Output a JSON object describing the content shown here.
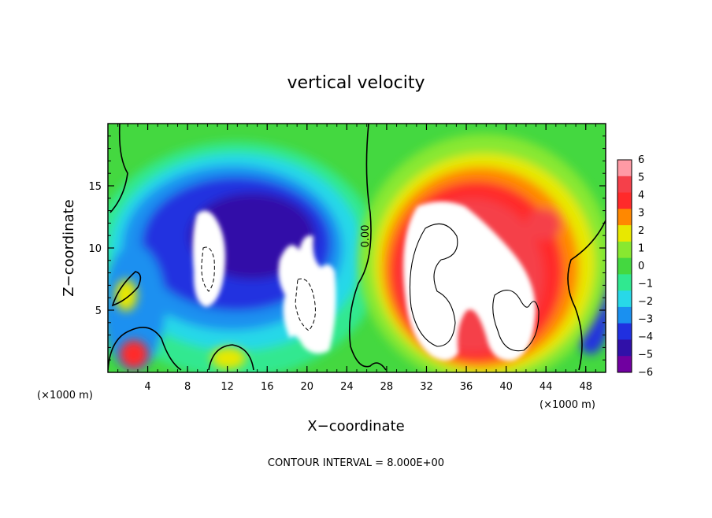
{
  "chart_data": {
    "type": "heatmap",
    "title": "vertical velocity",
    "xlabel": "X−coordinate",
    "ylabel": "Z−coordinate",
    "x_unit_left": "(×1000 m)",
    "x_unit_right": "(×1000 m)",
    "xlim": [
      0,
      50
    ],
    "ylim": [
      0,
      20
    ],
    "x_ticks": [
      4,
      8,
      12,
      16,
      20,
      24,
      28,
      32,
      36,
      40,
      44,
      48
    ],
    "y_ticks": [
      5,
      10,
      15
    ],
    "colorbar_ticks": [
      6,
      5,
      4,
      3,
      2,
      1,
      0,
      -1,
      -2,
      -3,
      -4,
      -5,
      -6
    ],
    "colorbar_labels": [
      "6",
      "5",
      "4",
      "3",
      "2",
      "1",
      "0",
      "−1",
      "−2",
      "−3",
      "−4",
      "−5",
      "−6"
    ],
    "colorbar_colors": [
      "#ff9aa5",
      "#f5404a",
      "#ff2a2a",
      "#ff8800",
      "#e8e800",
      "#88e830",
      "#44d840",
      "#30e890",
      "#28d8e8",
      "#1a90f0",
      "#2030e0",
      "#3010a8",
      "#7000a0"
    ],
    "zero_contour_label": "0.00",
    "contour_interval_text": "CONTOUR INTERVAL = 8.000E+00",
    "features": [
      {
        "name": "downdraft-core",
        "x_range": [
          9,
          24
        ],
        "z_range": [
          2,
          16
        ],
        "min_value": -6
      },
      {
        "name": "updraft-core",
        "x_range": [
          29,
          45
        ],
        "z_range": [
          1,
          17
        ],
        "max_value": 6
      }
    ]
  }
}
